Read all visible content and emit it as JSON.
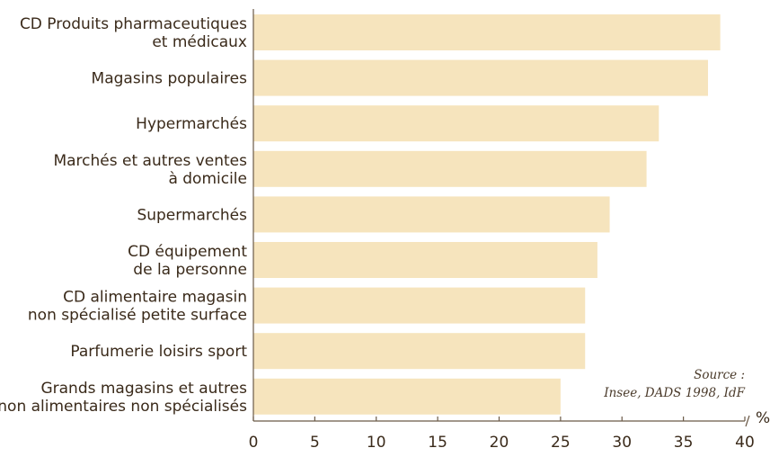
{
  "chart_data": {
    "type": "bar",
    "orientation": "horizontal",
    "categories": [
      [
        "CD Produits pharmaceutiques",
        "et médicaux"
      ],
      [
        "Magasins populaires"
      ],
      [
        "Hypermarchés"
      ],
      [
        "Marchés et autres ventes",
        "à domicile"
      ],
      [
        "Supermarchés"
      ],
      [
        "CD équipement",
        "de la personne"
      ],
      [
        "CD alimentaire magasin",
        "non spécialisé petite surface"
      ],
      [
        "Parfumerie loisirs sport"
      ],
      [
        "Grands magasins et autres",
        "non alimentaires non spécialisés"
      ]
    ],
    "values": [
      38,
      37,
      33,
      32,
      29,
      28,
      27,
      27,
      25
    ],
    "xlim": [
      0,
      40
    ],
    "xticks": [
      "0",
      "5",
      "10",
      "15",
      "20",
      "25",
      "30",
      "35",
      "40"
    ],
    "unit": "%",
    "bar_color": "#f6e4bd",
    "axis_color": "#6b5a48",
    "source": {
      "line1": "Source :",
      "line2": "Insee, DADS 1998, IdF"
    },
    "grid": false,
    "legend": "none"
  }
}
